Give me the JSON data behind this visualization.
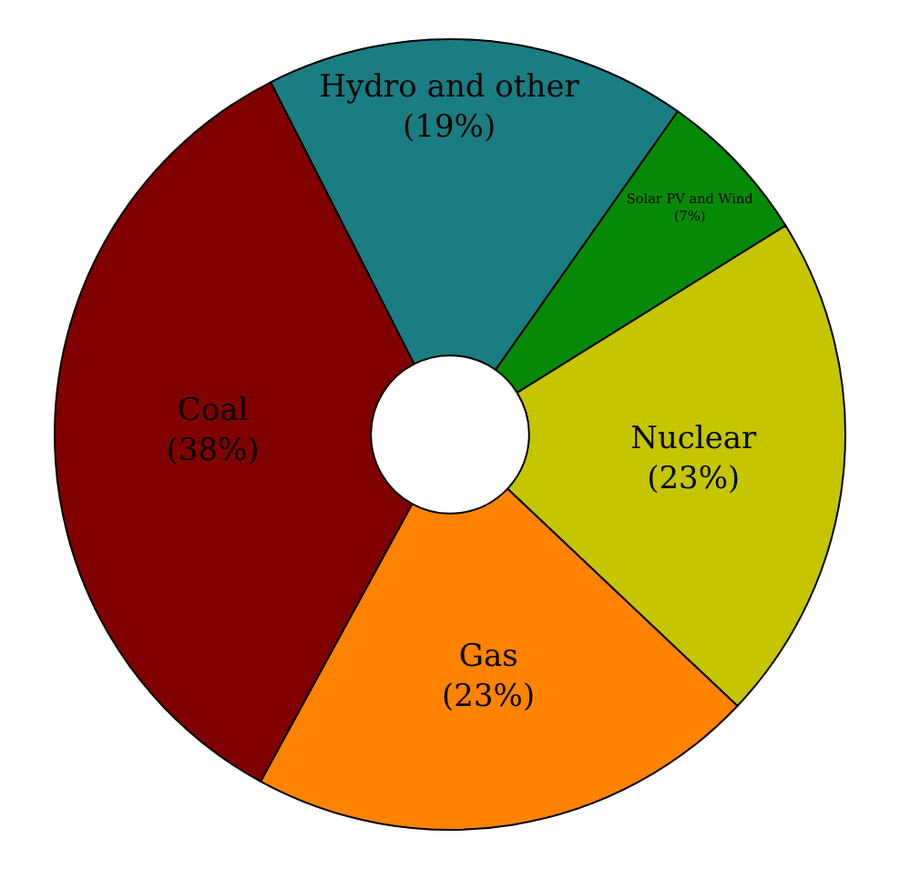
{
  "chart_data": {
    "type": "donut",
    "categories": [
      "Hydro and other",
      "Solar PV and Wind",
      "Nuclear",
      "Gas",
      "Coal"
    ],
    "values": [
      19,
      7,
      23,
      23,
      38
    ],
    "value_labels": [
      "(19%)",
      "(7%)",
      "(23%)",
      "(23%)",
      "(38%)"
    ],
    "colors": [
      "#197d82",
      "#078a07",
      "#c5c500",
      "#ff8200",
      "#800000"
    ]
  }
}
